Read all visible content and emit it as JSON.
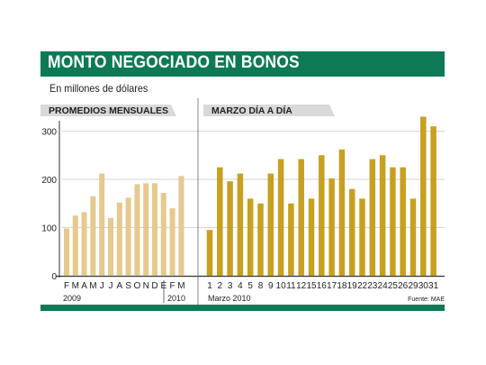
{
  "header": {
    "title": "MONTO NEGOCIADO EN BONOS",
    "subtitle": "En millones de dólares",
    "source": "Fuente: MAE"
  },
  "colors": {
    "brand_green": "#0d7a55",
    "monthly_bar": "#e6c98e",
    "daily_bar": "#c8a020",
    "tab_gray": "#d9d9d9",
    "grid": "#c8c8c8"
  },
  "chart_data": [
    {
      "type": "bar",
      "title": "PROMEDIOS MENSUALES",
      "categories": [
        "F",
        "M",
        "A",
        "M",
        "J",
        "J",
        "A",
        "S",
        "O",
        "N",
        "D",
        "E",
        "F",
        "M"
      ],
      "values": [
        98,
        125,
        132,
        165,
        212,
        120,
        152,
        162,
        190,
        192,
        192,
        172,
        140,
        207
      ],
      "year_labels": [
        "2009",
        "2010"
      ],
      "ylim": [
        0,
        340
      ],
      "yticks": [
        0,
        100,
        200,
        300
      ],
      "grid": true
    },
    {
      "type": "bar",
      "title": "MARZO DÍA A DÍA",
      "categories": [
        "1",
        "2",
        "3",
        "4",
        "5",
        "8",
        "9",
        "10",
        "11",
        "12",
        "15",
        "16",
        "17",
        "18",
        "19",
        "22",
        "23",
        "24",
        "25",
        "26",
        "29",
        "30",
        "31"
      ],
      "values": [
        95,
        225,
        196,
        212,
        160,
        150,
        212,
        242,
        150,
        242,
        160,
        250,
        202,
        262,
        180,
        160,
        242,
        250,
        225,
        225,
        160,
        330,
        310
      ],
      "xlabel": "Marzo 2010",
      "ylim": [
        0,
        340
      ],
      "grid": true
    }
  ]
}
